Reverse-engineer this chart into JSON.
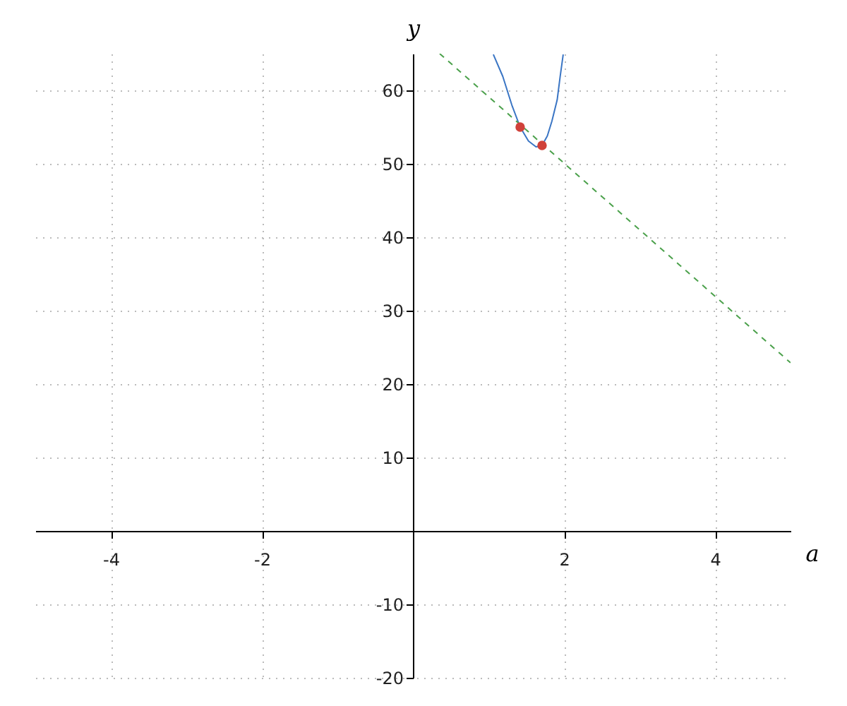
{
  "chart_data": {
    "type": "line",
    "xlabel": "a",
    "ylabel": "y",
    "xlim": [
      -5,
      5
    ],
    "ylim": [
      -20,
      65
    ],
    "xticks": [
      -4,
      -2,
      2,
      4
    ],
    "yticks": [
      -20,
      -10,
      10,
      20,
      30,
      40,
      50,
      60
    ],
    "grid": true,
    "series": [
      {
        "color": "#3a75c4",
        "line_style": "solid",
        "marker": "none",
        "x": [
          1.065,
          1.19,
          1.31,
          1.42,
          1.53,
          1.63,
          1.71,
          1.78,
          1.84,
          1.91,
          1.95,
          1.99
        ],
        "values": [
          64.9,
          61.9,
          58.0,
          55.0,
          53.1,
          52.3,
          52.5,
          53.8,
          55.8,
          58.7,
          61.9,
          64.9
        ]
      },
      {
        "color": "#4aa04a",
        "line_style": "dashed",
        "marker": "none",
        "x": [
          0.355,
          5
        ],
        "values": [
          65,
          22.9
        ]
      },
      {
        "type": "scatter",
        "color": "#d0413a",
        "marker": "circle",
        "x": [
          1.42,
          1.71
        ],
        "values": [
          55.0,
          52.5
        ]
      }
    ]
  }
}
